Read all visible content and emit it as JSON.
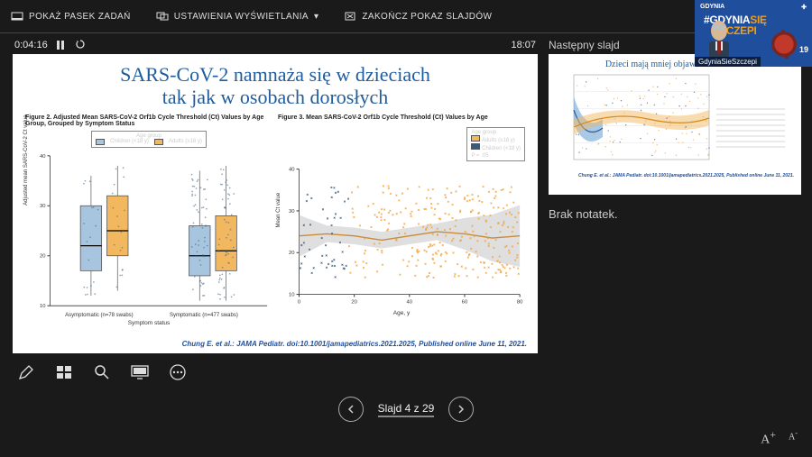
{
  "topbar": {
    "taskbar": "POKAŻ PASEK ZADAŃ",
    "display": "USTAWIENIA WYŚWIETLANIA",
    "end": "ZAKOŃCZ POKAZ SLAJDÓW"
  },
  "time": {
    "elapsed": "0:04:16",
    "total": "18:07"
  },
  "currentSlide": {
    "title_l1": "SARS-CoV-2 namnaża się w dzieciach",
    "title_l2": "tak jak w osobach dorosłych",
    "fig1_caption": "Figure 2. Adjusted Mean SARS-CoV-2 Orf1b Cycle Threshold (Ct) Values by Age Group, Grouped by Symptom Status",
    "fig2_caption": "Figure 3. Mean SARS-CoV-2 Orf1b Cycle Threshold (Ct) Values by Age",
    "legend_title": "Age group",
    "legend_a": "Children (<18 y)",
    "legend_b": "Adults (≥18 y)",
    "fig2_legend_a": "Adults (≥18 y)",
    "fig2_legend_b": "Children (<18 y)",
    "fig2_p": "P = .05",
    "ylabel": "Adjusted mean SARS-CoV-2 Ct value",
    "ylabel2": "Mean Ct value",
    "xlabel": "Symptom status",
    "xlabel2": "Age, y",
    "xtick1": "Asymptomatic (n=78 swabs)",
    "xtick2": "Symptomatic (n=477 swabs)",
    "citation": "Chung E. et al.: JAMA Pediatr. doi:10.1001/jamapediatrics.2021.2025, Published online June 11, 2021.",
    "boxplot": {
      "y_min": 10,
      "y_max": 40,
      "y_ticks": [
        10,
        20,
        30,
        40
      ],
      "colors": {
        "children": "#a8c5e0",
        "adults": "#f2b85f",
        "stroke": "#555",
        "point": "#4a6b8a"
      },
      "groups": [
        {
          "label": "Asymptomatic",
          "boxes": [
            {
              "q1": 17,
              "med": 22,
              "q3": 30,
              "lo": 12,
              "hi": 36,
              "color": "children"
            },
            {
              "q1": 20,
              "med": 25,
              "q3": 32,
              "lo": 13,
              "hi": 38,
              "color": "adults"
            }
          ]
        },
        {
          "label": "Symptomatic",
          "boxes": [
            {
              "q1": 16,
              "med": 20,
              "q3": 26,
              "lo": 11,
              "hi": 37,
              "color": "children"
            },
            {
              "q1": 17,
              "med": 21,
              "q3": 28,
              "lo": 11,
              "hi": 38,
              "color": "adults"
            }
          ]
        }
      ]
    },
    "scatter": {
      "x_min": 0,
      "x_max": 80,
      "y_min": 10,
      "y_max": 40,
      "colors": {
        "adults": "#f2a33c",
        "children": "#3b5b7a",
        "line": "#c98b3a",
        "band": "#b8b8b8"
      },
      "trend": [
        [
          0,
          24
        ],
        [
          10,
          24.5
        ],
        [
          20,
          24
        ],
        [
          30,
          23
        ],
        [
          40,
          24
        ],
        [
          50,
          25
        ],
        [
          60,
          24.5
        ],
        [
          70,
          23.5
        ],
        [
          80,
          24
        ]
      ]
    }
  },
  "right": {
    "nextHeader": "Następny slajd",
    "nextTitle": "Dzieci mają mniej objawów zakażenia",
    "nextCite": "Chung E. et al.: JAMA Pediatr. doi:10.1001/jamapediatrics.2021.2025, Published online June 11, 2021.",
    "notes": "Brak notatek."
  },
  "nav": {
    "counter": "Slajd 4 z 29"
  },
  "webcam": {
    "left": "GDYNIA",
    "hash": "#",
    "w1": "GDYNIA",
    "w2": "SIĘ",
    "w3": "SZCZEPI",
    "tag": "GdyniaSieSzczepi",
    "num": "19"
  },
  "colors": {
    "title": "#1f5c9e"
  }
}
